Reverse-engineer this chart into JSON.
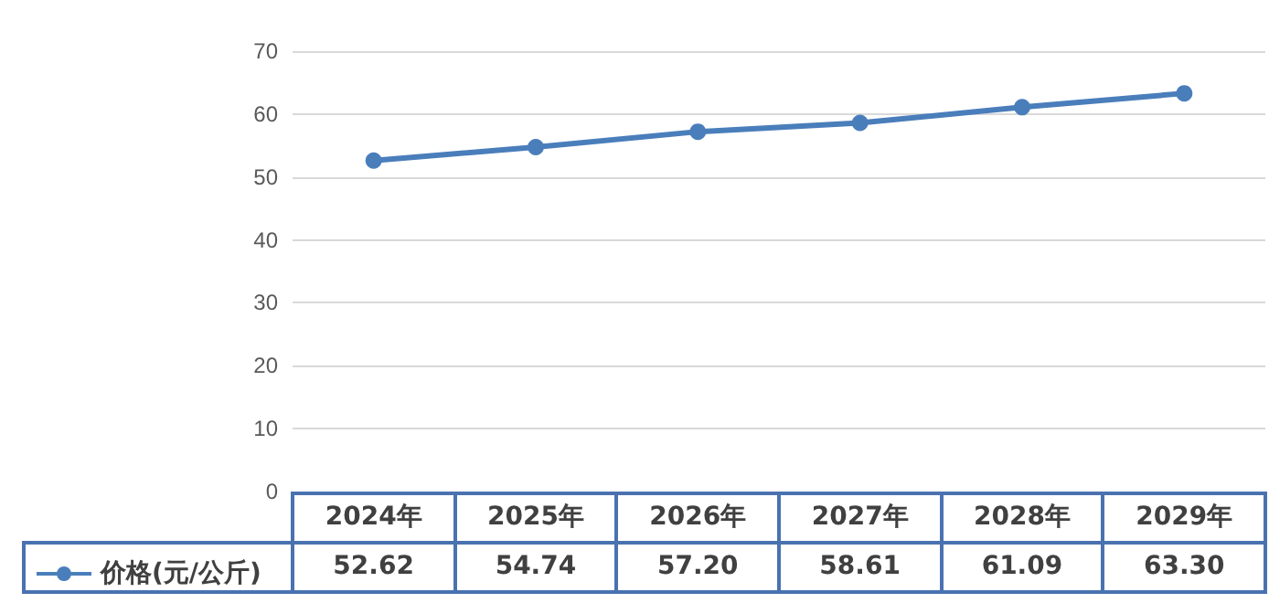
{
  "chart_data": {
    "type": "line",
    "categories": [
      "2024年",
      "2025年",
      "2026年",
      "2027年",
      "2028年",
      "2029年"
    ],
    "series": [
      {
        "name": "价格(元/公斤)",
        "color": "#4a7ebb",
        "values": [
          52.62,
          54.74,
          57.2,
          58.61,
          61.09,
          63.3
        ]
      }
    ],
    "value_labels": [
      "52.62",
      "54.74",
      "57.20",
      "58.61",
      "61.09",
      "63.30"
    ],
    "ylim": [
      0,
      70
    ],
    "yticks": [
      0,
      10,
      20,
      30,
      40,
      50,
      60,
      70
    ],
    "grid": "y",
    "legend": "bottom left",
    "marker": "circle",
    "line_style": "solid"
  }
}
